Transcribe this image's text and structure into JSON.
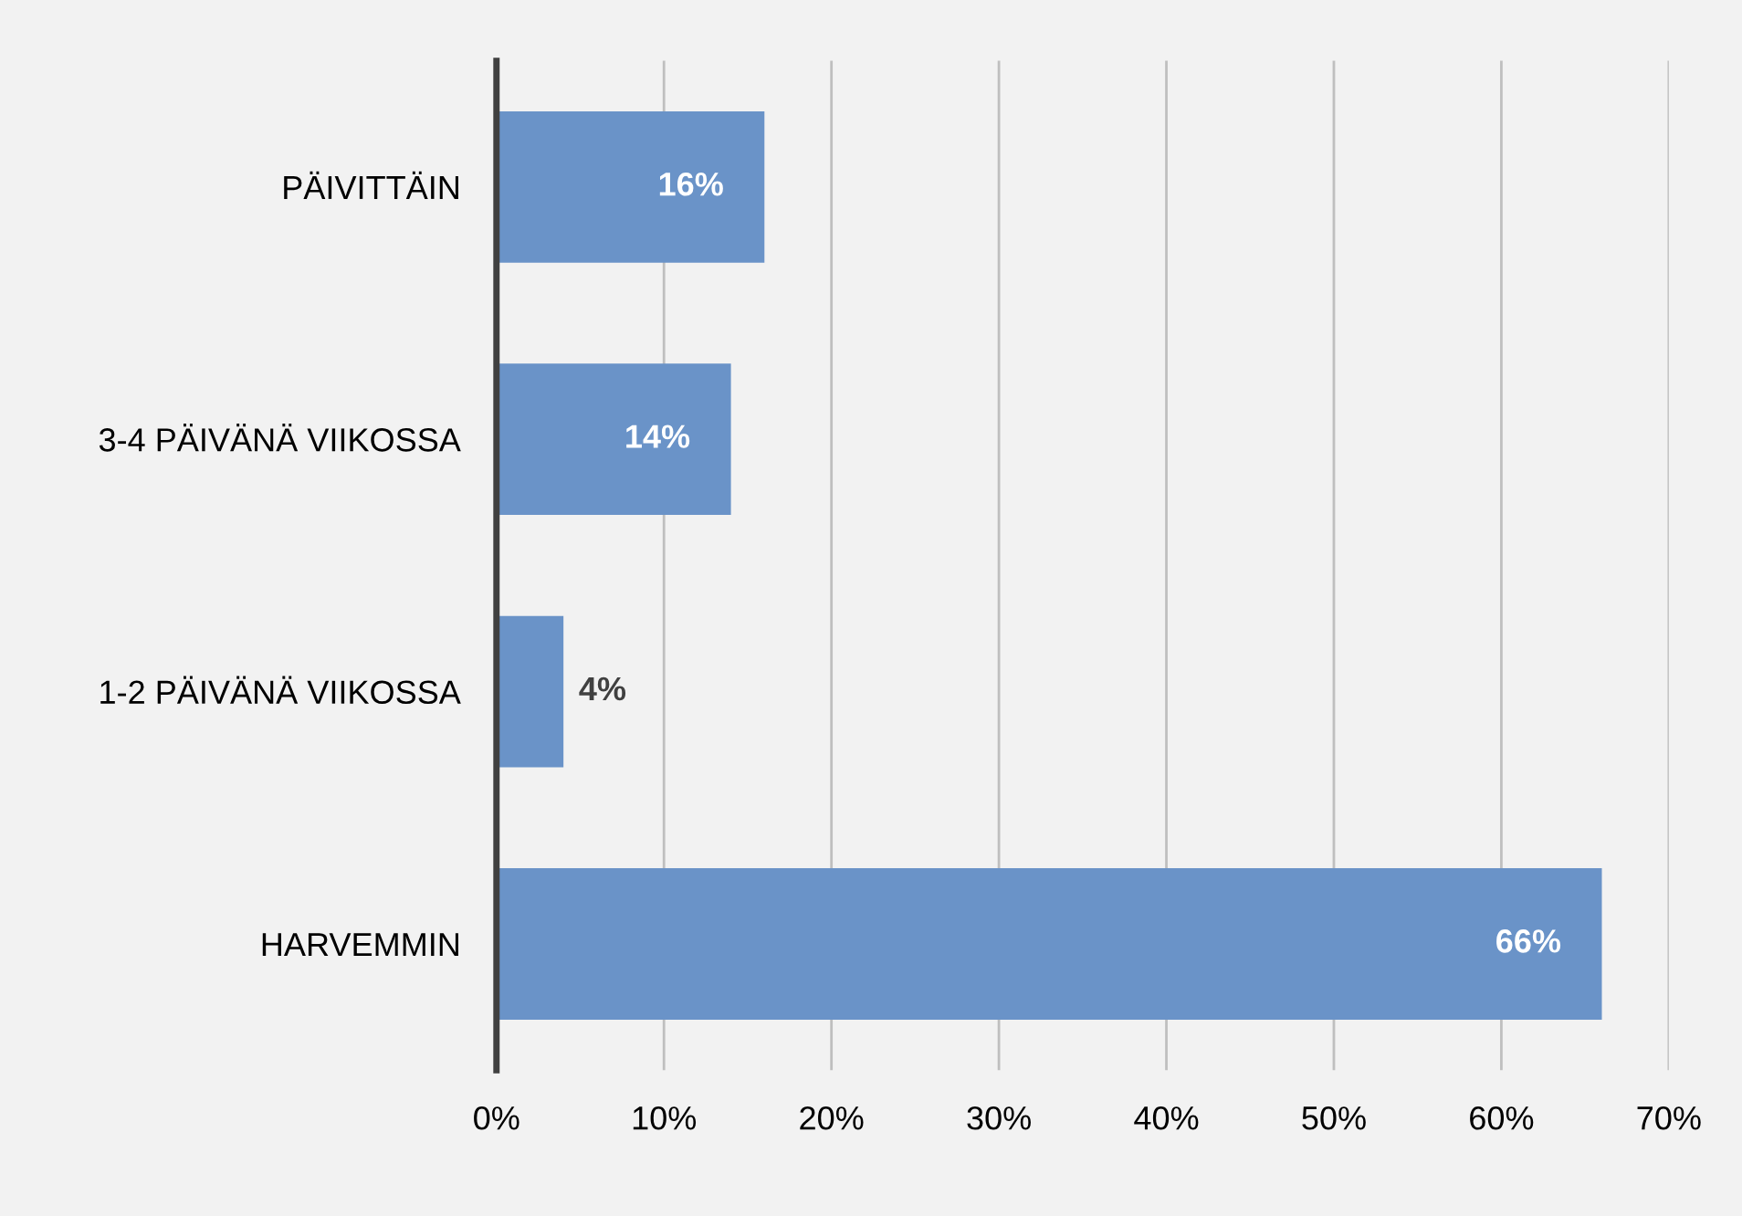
{
  "chart_data": {
    "type": "bar",
    "orientation": "horizontal",
    "categories": [
      "PÄIVITTÄIN",
      "3-4 PÄIVÄNÄ VIIKOSSA",
      "1-2 PÄIVÄNÄ VIIKOSSA",
      "HARVEMMIN"
    ],
    "values": [
      16,
      14,
      4,
      66
    ],
    "value_labels": [
      "16%",
      "14%",
      "4%",
      "66%"
    ],
    "color": "#6a93c8",
    "xlim": [
      0,
      70
    ],
    "xticks": [
      {
        "value": 0,
        "label": "0%"
      },
      {
        "value": 10,
        "label": "10%"
      },
      {
        "value": 20,
        "label": "20%"
      },
      {
        "value": 30,
        "label": "30%"
      },
      {
        "value": 40,
        "label": "40%"
      },
      {
        "value": 50,
        "label": "50%"
      },
      {
        "value": 60,
        "label": "60%"
      },
      {
        "value": 70,
        "label": "70%"
      }
    ],
    "grid": "x",
    "legend": false
  }
}
